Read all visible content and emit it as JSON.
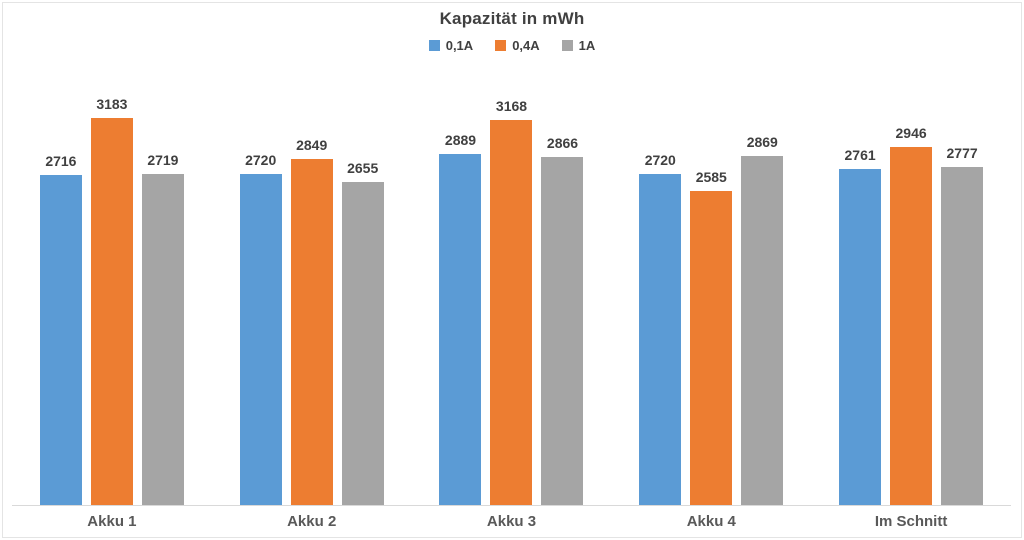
{
  "chart_data": {
    "type": "bar",
    "title": "Kapazität in mWh",
    "categories": [
      "Akku 1",
      "Akku 2",
      "Akku 3",
      "Akku 4",
      "Im Schnitt"
    ],
    "series": [
      {
        "name": "0,1A",
        "color": "#5B9BD5",
        "values": [
          2716,
          2720,
          2889,
          2720,
          2761
        ]
      },
      {
        "name": "0,4A",
        "color": "#ED7D31",
        "values": [
          3183,
          2849,
          3168,
          2585,
          2946
        ]
      },
      {
        "name": "1A",
        "color": "#A5A5A5",
        "values": [
          2719,
          2655,
          2866,
          2869,
          2777
        ]
      }
    ],
    "value_labels": true,
    "legend_position": "top",
    "grid": false,
    "xlabel": "",
    "ylabel": "",
    "ylim": [
      0,
      3183
    ],
    "axis_line_color": "#D9D9D9",
    "text_colors": {
      "title": "#404040",
      "value_label": "#404040",
      "category_label": "#595959",
      "legend": "#404040"
    }
  }
}
